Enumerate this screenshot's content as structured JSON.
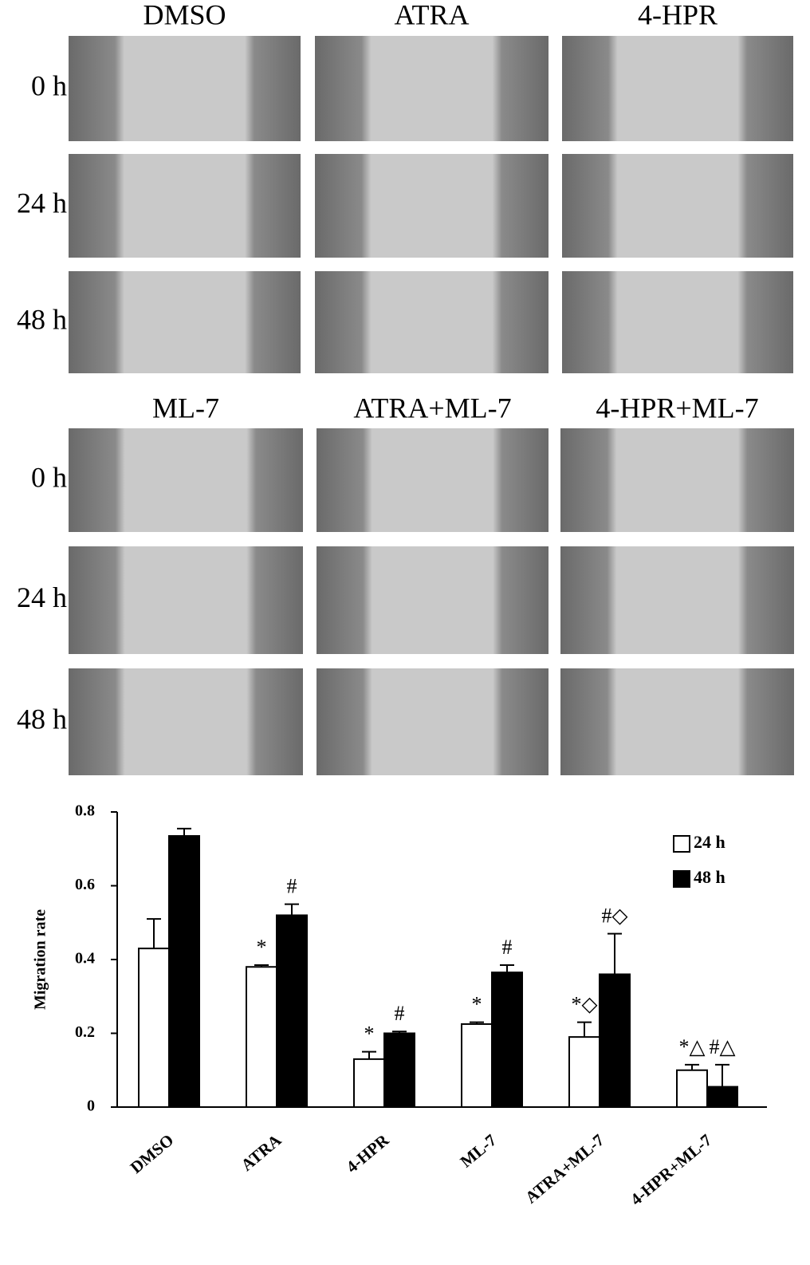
{
  "panels": {
    "top": {
      "columns": [
        "DMSO",
        "ATRA",
        "4-HPR"
      ],
      "rows": [
        "0 h",
        "24 h",
        "48 h"
      ]
    },
    "bottom": {
      "columns": [
        "ML-7",
        "ATRA+ML-7",
        "4-HPR+ML-7"
      ],
      "rows": [
        "0 h",
        "24 h",
        "48 h"
      ]
    }
  },
  "chart_data": {
    "type": "bar",
    "ylabel": "Migration rate",
    "categories": [
      "DMSO",
      "ATRA",
      "4-HPR",
      "ML-7",
      "ATRA+ML-7",
      "4-HPR+ML-7"
    ],
    "series": [
      {
        "name": "24 h",
        "color": "#ffffff",
        "values": [
          0.43,
          0.38,
          0.13,
          0.225,
          0.19,
          0.1
        ],
        "errors": [
          0.08,
          0.005,
          0.02,
          0.005,
          0.04,
          0.015
        ],
        "annotations": [
          null,
          "*",
          "*",
          "*",
          "*◇",
          "*△"
        ]
      },
      {
        "name": "48 h",
        "color": "#000000",
        "values": [
          0.735,
          0.52,
          0.2,
          0.365,
          0.36,
          0.055
        ],
        "errors": [
          0.02,
          0.03,
          0.005,
          0.02,
          0.11,
          0.06
        ],
        "annotations": [
          null,
          "#",
          "#",
          "#",
          "#◇",
          "#△"
        ]
      }
    ],
    "ylim": [
      0,
      0.8
    ],
    "yticks": [
      0,
      0.2,
      0.4,
      0.6,
      0.8
    ],
    "legend": "upper right"
  }
}
